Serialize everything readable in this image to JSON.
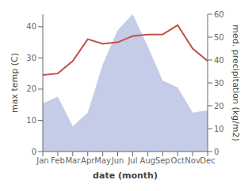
{
  "chart_data": {
    "type": "line",
    "categories": [
      "Jan",
      "Feb",
      "Mar",
      "Apr",
      "May",
      "Jun",
      "Jul",
      "Aug",
      "Sep",
      "Oct",
      "Nov",
      "Dec"
    ],
    "series": [
      {
        "type": "area",
        "color": "#c5cce8",
        "values": [
          21,
          24,
          11,
          17,
          38,
          53,
          60,
          46,
          31,
          28,
          17,
          18
        ],
        "axis": "y2"
      },
      {
        "type": "line",
        "color": "#c0504d",
        "values": [
          24.5,
          25.0,
          29.0,
          36.0,
          34.5,
          35.0,
          37.0,
          37.5,
          37.5,
          40.5,
          33.0,
          29.0
        ]
      }
    ],
    "xlabel": "date (month)",
    "ylabel": "max temp (C)",
    "y2label": "med. precipitation (kg/m2)",
    "ylim": [
      0,
      44
    ],
    "yticks": [
      0,
      10,
      20,
      30,
      40
    ],
    "y2lim": [
      0,
      60
    ],
    "y2ticks": [
      0,
      10,
      20,
      30,
      40,
      50,
      60
    ],
    "grid": false
  }
}
